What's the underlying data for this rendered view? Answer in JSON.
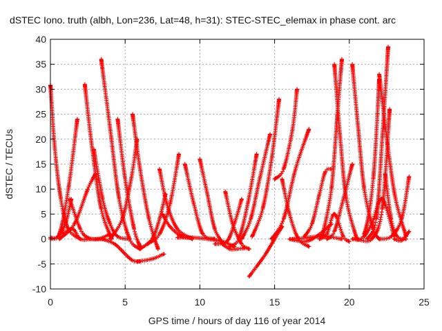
{
  "chart_data": {
    "type": "scatter",
    "title": "dSTEC Iono. truth (albh, Lon=236, Lat=48, h=31): STEC-STEC_elemax in phase cont. arc",
    "xlabel": "GPS time / hours of day 116 of year 2014",
    "ylabel": "dSTEC  / TECUs",
    "xlim": [
      0,
      25
    ],
    "ylim": [
      -10,
      40
    ],
    "xticks": [
      0,
      5,
      10,
      15,
      20,
      25
    ],
    "yticks": [
      -10,
      -5,
      0,
      5,
      10,
      15,
      20,
      25,
      30,
      35,
      40
    ],
    "grid": true,
    "marker": "plus",
    "color": "#ff0000",
    "arcs": [
      {
        "x": [
          0.0,
          0.3,
          0.7,
          1.2,
          2.0
        ],
        "y": [
          30.8,
          18.0,
          8.0,
          2.0,
          0.0
        ]
      },
      {
        "x": [
          0.0,
          0.5,
          1.0,
          1.4
        ],
        "y": [
          0.0,
          0.5,
          3.0,
          8.0
        ]
      },
      {
        "x": [
          0.0,
          0.6,
          1.2,
          1.8
        ],
        "y": [
          0.3,
          1.0,
          10.0,
          24.0
        ]
      },
      {
        "x": [
          0.6,
          1.6,
          2.5,
          3.0
        ],
        "y": [
          0.0,
          3.0,
          10.0,
          13.0
        ]
      },
      {
        "x": [
          2.3,
          2.8,
          3.4,
          4.1
        ],
        "y": [
          31.0,
          18.0,
          6.0,
          0.0
        ]
      },
      {
        "x": [
          2.9,
          3.5,
          4.0,
          4.5,
          5.3
        ],
        "y": [
          18.0,
          8.0,
          3.0,
          0.5,
          0.0
        ]
      },
      {
        "x": [
          3.4,
          4.0,
          4.6,
          5.3,
          6.0
        ],
        "y": [
          36.0,
          22.0,
          8.0,
          0.0,
          -2.0
        ]
      },
      {
        "x": [
          4.5,
          5.0,
          5.6,
          6.0
        ],
        "y": [
          24.0,
          12.0,
          2.0,
          -1.5
        ]
      },
      {
        "x": [
          3.5,
          4.3,
          5.0,
          5.5,
          6.0
        ],
        "y": [
          0.0,
          -1.0,
          -3.0,
          -4.3,
          -4.5
        ]
      },
      {
        "x": [
          0.8,
          1.5,
          2.0,
          2.8,
          3.5
        ],
        "y": [
          1.0,
          2.0,
          0.0,
          0.0,
          0.0
        ]
      },
      {
        "x": [
          1.3,
          2.0,
          2.5,
          3.2,
          4.0
        ],
        "y": [
          8.0,
          2.0,
          0.3,
          0.0,
          1.0
        ]
      },
      {
        "x": [
          4.0,
          4.8,
          5.4,
          5.8
        ],
        "y": [
          0.0,
          4.0,
          12.0,
          20.0
        ]
      },
      {
        "x": [
          5.5,
          6.0,
          6.6,
          7.2
        ],
        "y": [
          25.0,
          14.0,
          4.0,
          -2.0
        ]
      },
      {
        "x": [
          6.0,
          6.8,
          7.3,
          7.7
        ],
        "y": [
          -2.0,
          0.0,
          4.0,
          9.0
        ]
      },
      {
        "x": [
          5.8,
          6.5,
          7.0,
          7.6
        ],
        "y": [
          -4.5,
          -4.2,
          -3.8,
          -3.0
        ]
      },
      {
        "x": [
          7.3,
          7.8,
          8.5,
          9.5
        ],
        "y": [
          14.0,
          7.0,
          2.0,
          0.0
        ]
      },
      {
        "x": [
          7.5,
          8.0,
          8.8,
          9.5
        ],
        "y": [
          5.0,
          2.5,
          0.5,
          0.2
        ]
      },
      {
        "x": [
          6.5,
          7.3,
          8.0,
          8.6
        ],
        "y": [
          -1.0,
          1.0,
          7.0,
          17.0
        ]
      },
      {
        "x": [
          9.0,
          9.6,
          10.2,
          11.0
        ],
        "y": [
          15.0,
          7.0,
          1.0,
          0.0
        ]
      },
      {
        "x": [
          8.5,
          9.5,
          10.5,
          11.5,
          12.3
        ],
        "y": [
          0.3,
          0.3,
          0.0,
          -0.5,
          -1.5
        ]
      },
      {
        "x": [
          10.0,
          10.5,
          11.0,
          11.6
        ],
        "y": [
          16.0,
          9.0,
          2.0,
          -1.0
        ]
      },
      {
        "x": [
          11.0,
          11.8,
          12.3,
          12.8
        ],
        "y": [
          -1.0,
          -0.5,
          3.0,
          8.0
        ]
      },
      {
        "x": [
          11.5,
          12.0,
          12.5,
          13.0
        ],
        "y": [
          -1.0,
          -2.0,
          -2.0,
          -1.8
        ]
      },
      {
        "x": [
          11.7,
          12.2,
          12.8,
          13.3
        ],
        "y": [
          9.5,
          3.0,
          -1.0,
          -2.0
        ]
      },
      {
        "x": [
          12.0,
          12.6,
          13.2,
          13.8
        ],
        "y": [
          -1.5,
          0.0,
          7.0,
          17.0
        ]
      },
      {
        "x": [
          12.8,
          13.4,
          14.0,
          14.7
        ],
        "y": [
          0.0,
          4.0,
          12.0,
          21.0
        ]
      },
      {
        "x": [
          13.3,
          13.8,
          14.4,
          15.0,
          15.5
        ],
        "y": [
          -7.5,
          -5.5,
          -3.0,
          0.0,
          2.5
        ]
      },
      {
        "x": [
          13.5,
          14.2,
          14.8,
          15.3
        ],
        "y": [
          0.5,
          6.0,
          16.0,
          28.0
        ]
      },
      {
        "x": [
          14.8,
          15.6,
          16.4,
          17.3
        ],
        "y": [
          0.0,
          4.0,
          14.0,
          22.0
        ]
      },
      {
        "x": [
          15.0,
          15.6,
          16.2,
          16.5
        ],
        "y": [
          12.0,
          14.0,
          22.0,
          30.0
        ]
      },
      {
        "x": [
          15.5,
          16.0,
          16.6,
          17.3
        ],
        "y": [
          12.0,
          5.0,
          0.0,
          -1.5
        ]
      },
      {
        "x": [
          16.0,
          17.0,
          17.8,
          18.8
        ],
        "y": [
          0.0,
          -0.5,
          0.5,
          3.0
        ]
      },
      {
        "x": [
          17.0,
          17.5,
          18.0,
          18.4,
          18.8
        ],
        "y": [
          0.5,
          3.0,
          9.0,
          13.5,
          14.0
        ]
      },
      {
        "x": [
          16.2,
          17.0,
          17.8,
          18.5,
          19.5
        ],
        "y": [
          0.0,
          0.2,
          0.5,
          0.5,
          0.0
        ]
      },
      {
        "x": [
          18.0,
          18.5,
          19.0,
          19.6,
          20.0
        ],
        "y": [
          0.0,
          1.0,
          5.0,
          0.5,
          -0.5
        ]
      },
      {
        "x": [
          18.2,
          18.8,
          19.2,
          19.5
        ],
        "y": [
          0.5,
          10.0,
          25.0,
          36.0
        ]
      },
      {
        "x": [
          19.0,
          19.4,
          19.8,
          20.5
        ],
        "y": [
          35.0,
          20.0,
          8.0,
          0.0
        ]
      },
      {
        "x": [
          18.5,
          19.0,
          19.6,
          20.2
        ],
        "y": [
          0.0,
          1.5,
          8.0,
          15.0
        ]
      },
      {
        "x": [
          20.2,
          20.6,
          21.0,
          21.6,
          22.0
        ],
        "y": [
          35.0,
          22.0,
          10.0,
          2.0,
          0.0
        ]
      },
      {
        "x": [
          20.2,
          21.0,
          21.6,
          22.0
        ],
        "y": [
          0.0,
          1.0,
          12.0,
          32.0
        ]
      },
      {
        "x": [
          21.0,
          21.5,
          22.2,
          23.0
        ],
        "y": [
          0.5,
          3.0,
          8.0,
          0.5
        ]
      },
      {
        "x": [
          21.2,
          21.8,
          22.2,
          22.6
        ],
        "y": [
          0.0,
          4.0,
          20.0,
          38.5
        ]
      },
      {
        "x": [
          22.0,
          22.6,
          23.1,
          23.8
        ],
        "y": [
          33.0,
          18.0,
          8.0,
          0.5
        ]
      },
      {
        "x": [
          22.4,
          22.8,
          23.2,
          23.8
        ],
        "y": [
          13.0,
          4.0,
          0.5,
          0.0
        ]
      },
      {
        "x": [
          20.5,
          21.5,
          22.2,
          22.7
        ],
        "y": [
          0.0,
          0.0,
          6.0,
          26.0
        ]
      },
      {
        "x": [
          22.0,
          22.8,
          23.5,
          24.0
        ],
        "y": [
          0.0,
          0.5,
          4.0,
          12.5
        ]
      },
      {
        "x": [
          23.0,
          23.5,
          24.0
        ],
        "y": [
          0.0,
          -0.3,
          1.5
        ]
      }
    ]
  }
}
